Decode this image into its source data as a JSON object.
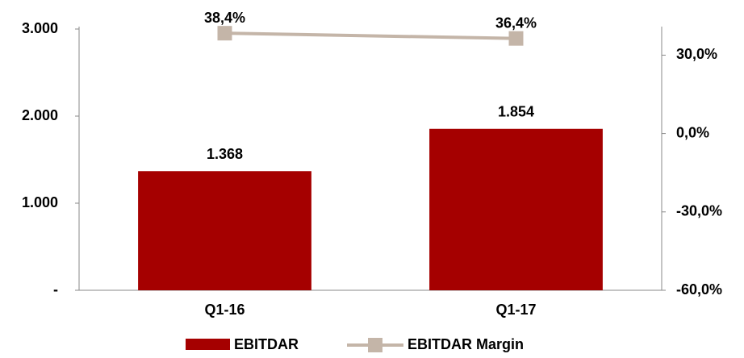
{
  "chart_data": {
    "type": "bar",
    "categories": [
      "Q1-16",
      "Q1-17"
    ],
    "series": [
      {
        "name": "EBITDAR",
        "type": "bar",
        "color": "#a50000",
        "values": [
          1368,
          1854
        ],
        "value_labels": [
          "1.368",
          "1.854"
        ]
      },
      {
        "name": "EBITDAR Margin",
        "type": "line",
        "axis": "y2",
        "color": "#c4b5a8",
        "values": [
          38.4,
          36.4
        ],
        "value_labels": [
          "38,4%",
          "36,4%"
        ]
      }
    ],
    "ylim": [
      0,
      3000
    ],
    "yticks": [
      {
        "value": 0,
        "label": "-"
      },
      {
        "value": 1000,
        "label": "1.000"
      },
      {
        "value": 2000,
        "label": "2.000"
      },
      {
        "value": 3000,
        "label": "3.000"
      }
    ],
    "y2lim": [
      -60,
      40
    ],
    "y2ticks": [
      {
        "value": -60,
        "label": "-60,0%"
      },
      {
        "value": -30,
        "label": "-30,0%"
      },
      {
        "value": 0,
        "label": "0,0%"
      },
      {
        "value": 30,
        "label": "30,0%"
      }
    ],
    "legend": "bottom"
  }
}
